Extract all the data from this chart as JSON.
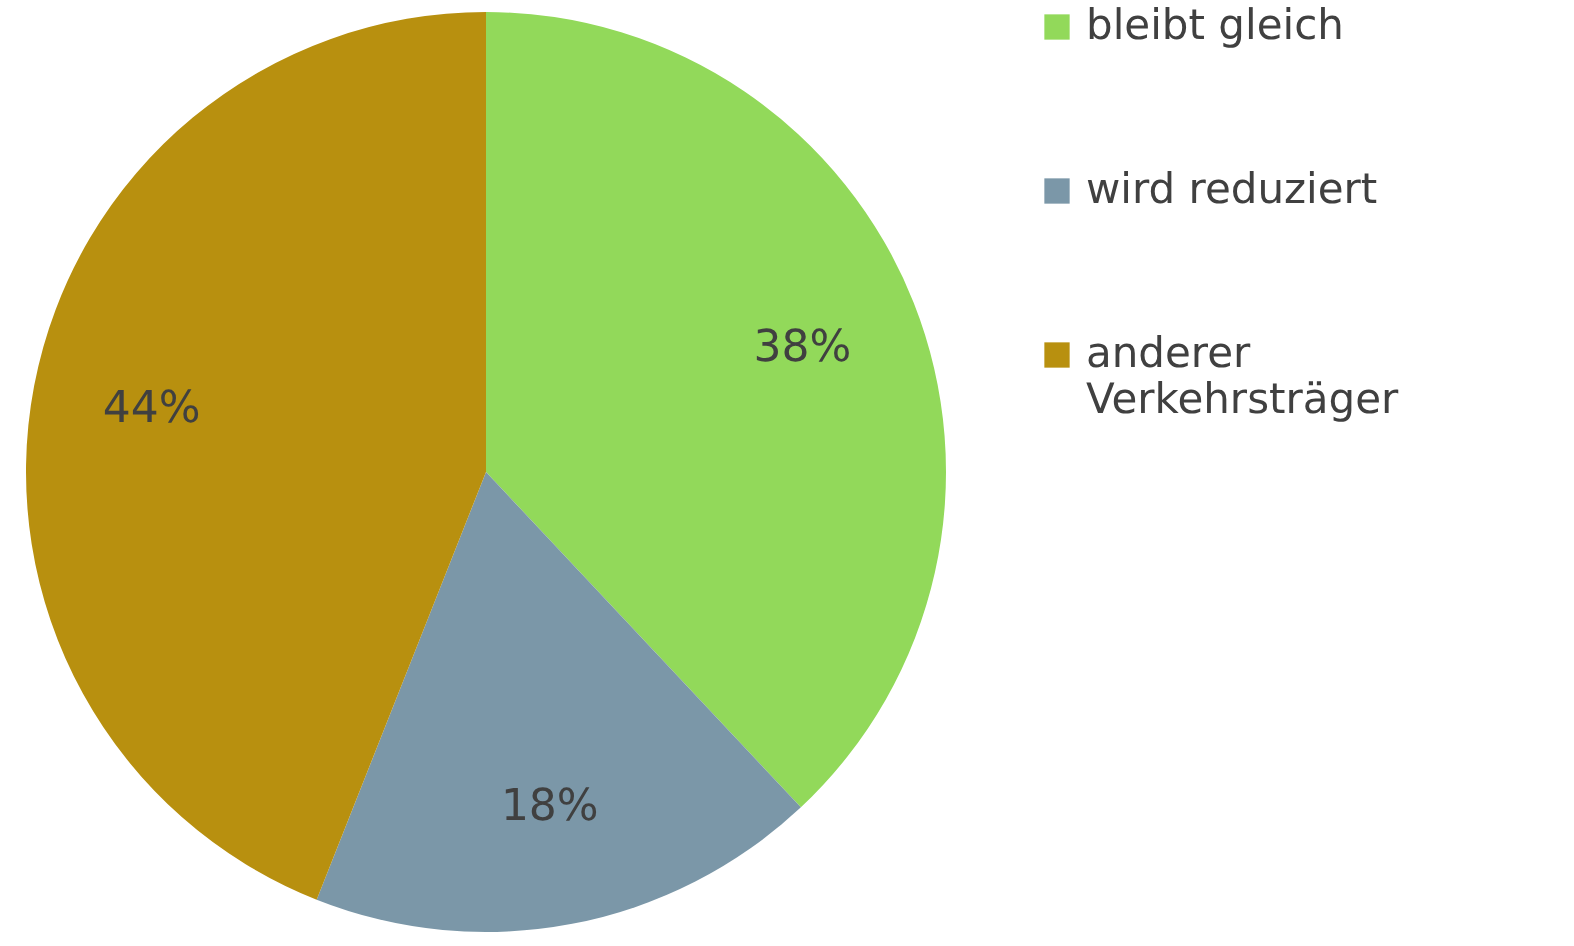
{
  "chart_data": {
    "type": "pie",
    "categories": [
      "bleibt gleich",
      "wird reduziert",
      "anderer Verkehrsträger"
    ],
    "values": [
      38,
      18,
      44
    ],
    "colors": [
      "#92d95a",
      "#7b97a8",
      "#b8900f"
    ],
    "value_labels": [
      "38%",
      "18%",
      "44%"
    ],
    "legend": "right"
  }
}
